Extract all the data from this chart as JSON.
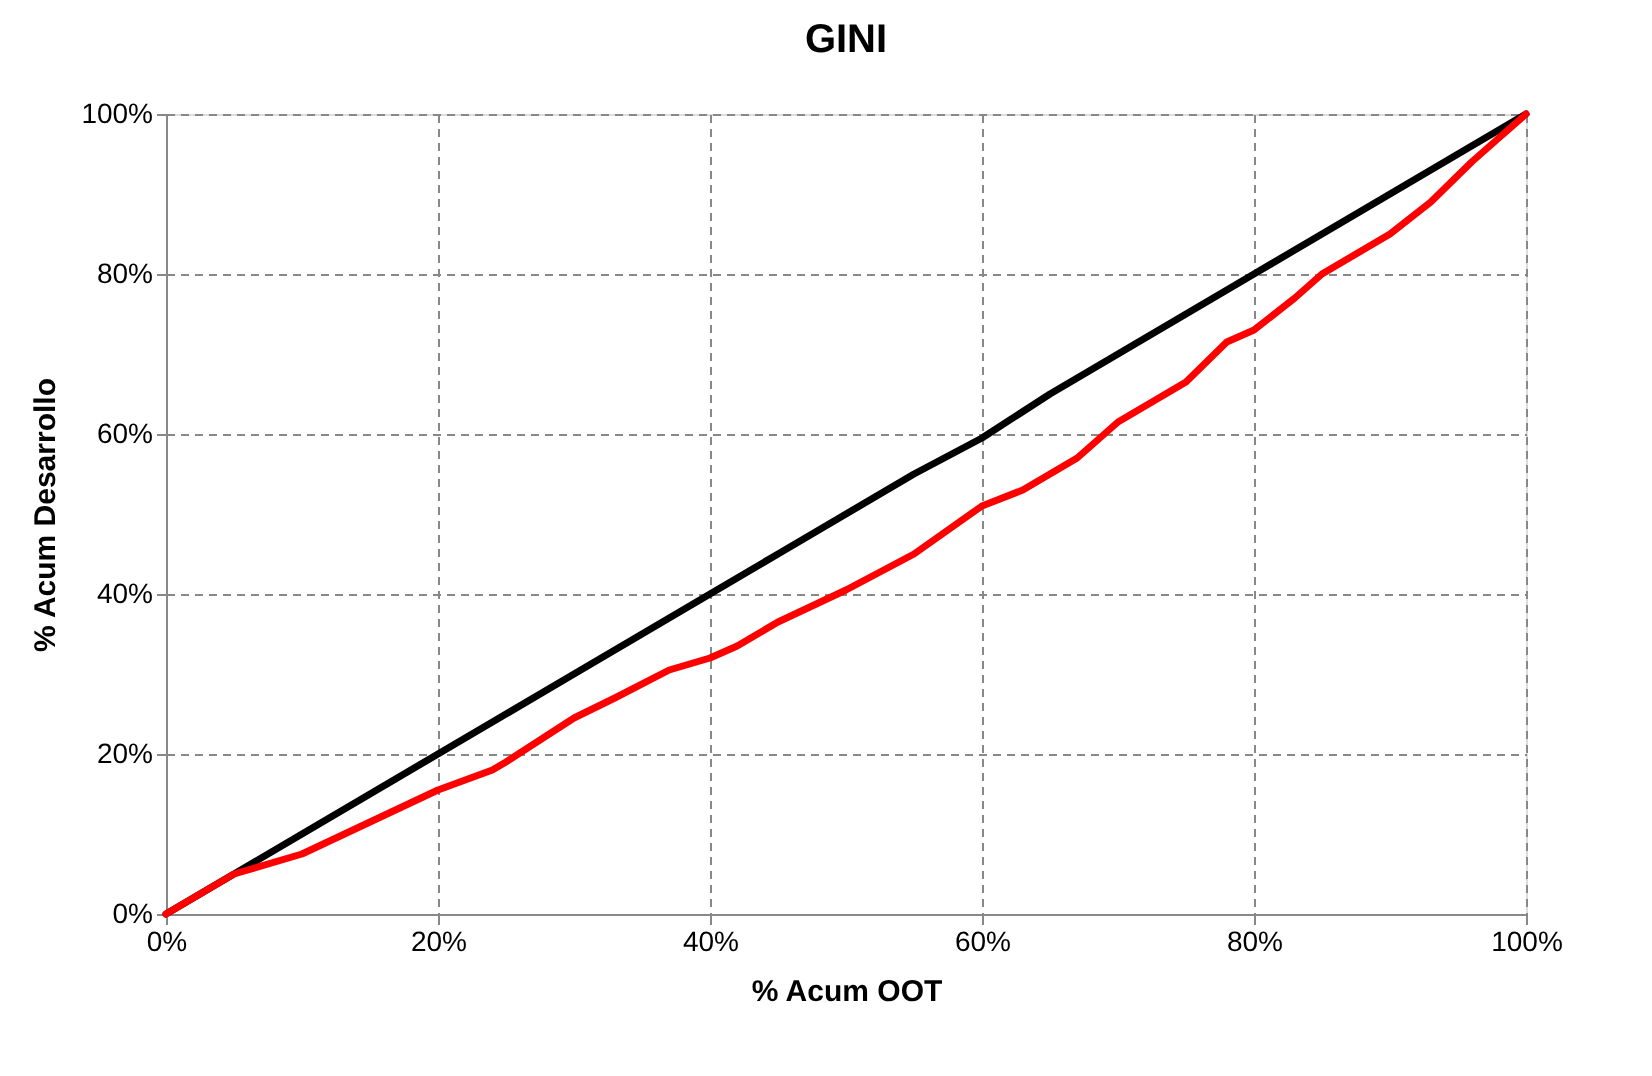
{
  "chart_data": {
    "type": "line",
    "title": "GINI",
    "xlabel": "% Acum OOT",
    "ylabel": "% Acum Desarrollo",
    "xlim": [
      0,
      1
    ],
    "ylim": [
      0,
      1
    ],
    "xticks": [
      {
        "value": 0,
        "label": "0%"
      },
      {
        "value": 0.2,
        "label": "20%"
      },
      {
        "value": 0.4,
        "label": "40%"
      },
      {
        "value": 0.6,
        "label": "60%"
      },
      {
        "value": 0.8,
        "label": "80%"
      },
      {
        "value": 1,
        "label": "100%"
      }
    ],
    "yticks": [
      {
        "value": 0,
        "label": "0%"
      },
      {
        "value": 0.2,
        "label": "20%"
      },
      {
        "value": 0.4,
        "label": "40%"
      },
      {
        "value": 0.6,
        "label": "60%"
      },
      {
        "value": 0.8,
        "label": "80%"
      },
      {
        "value": 1,
        "label": "100%"
      }
    ],
    "grid": true,
    "marker": "none",
    "line_style": "solid",
    "series": [
      {
        "color": "#000000",
        "x": [
          0,
          0.05,
          0.1,
          0.15,
          0.2,
          0.25,
          0.3,
          0.35,
          0.4,
          0.45,
          0.5,
          0.55,
          0.6,
          0.65,
          0.7,
          0.75,
          0.8,
          0.85,
          0.9,
          0.95,
          1
        ],
        "values": [
          0,
          0.05,
          0.1,
          0.15,
          0.2,
          0.25,
          0.3,
          0.35,
          0.4,
          0.45,
          0.5,
          0.55,
          0.595,
          0.65,
          0.7,
          0.75,
          0.8,
          0.85,
          0.9,
          0.95,
          1
        ]
      },
      {
        "color": "#ff0000",
        "x": [
          0,
          0.05,
          0.1,
          0.15,
          0.2,
          0.24,
          0.25,
          0.3,
          0.33,
          0.37,
          0.4,
          0.42,
          0.45,
          0.5,
          0.55,
          0.6,
          0.63,
          0.67,
          0.7,
          0.75,
          0.78,
          0.8,
          0.83,
          0.85,
          0.9,
          0.93,
          0.96,
          0.98,
          1
        ],
        "values": [
          0,
          0.05,
          0.075,
          0.115,
          0.155,
          0.18,
          0.19,
          0.245,
          0.27,
          0.305,
          0.32,
          0.335,
          0.365,
          0.405,
          0.45,
          0.51,
          0.53,
          0.57,
          0.615,
          0.665,
          0.715,
          0.73,
          0.77,
          0.8,
          0.85,
          0.89,
          0.94,
          0.97,
          1
        ]
      }
    ]
  }
}
